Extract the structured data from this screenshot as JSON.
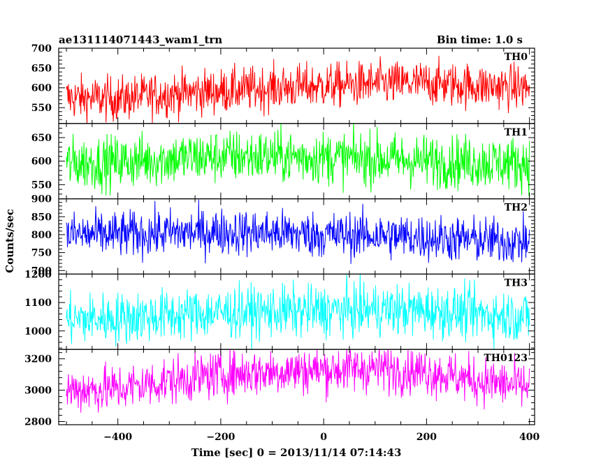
{
  "header": {
    "title": "ae131114071443_wam1_trn",
    "bin_time": "Bin time: 1.0 s"
  },
  "chart_data": [
    {
      "type": "line",
      "series_label": "TH0",
      "color": "#ff0000",
      "ylim": [
        510,
        700
      ],
      "yticks": [
        550,
        600,
        650,
        700
      ],
      "trend": [
        [
          -500,
          575
        ],
        [
          -400,
          572
        ],
        [
          -300,
          585
        ],
        [
          -200,
          592
        ],
        [
          -100,
          600
        ],
        [
          0,
          605
        ],
        [
          100,
          610
        ],
        [
          200,
          612
        ],
        [
          300,
          605
        ],
        [
          400,
          600
        ]
      ],
      "noise": 28
    },
    {
      "type": "line",
      "series_label": "TH1",
      "color": "#00ff00",
      "ylim": [
        520,
        680
      ],
      "yticks": [
        550,
        600,
        650
      ],
      "trend": [
        [
          -500,
          595
        ],
        [
          -400,
          598
        ],
        [
          -300,
          605
        ],
        [
          -200,
          610
        ],
        [
          -100,
          610
        ],
        [
          0,
          608
        ],
        [
          100,
          605
        ],
        [
          200,
          600
        ],
        [
          300,
          598
        ],
        [
          400,
          595
        ]
      ],
      "noise": 28
    },
    {
      "type": "line",
      "series_label": "TH2",
      "color": "#0000ff",
      "ylim": [
        690,
        900
      ],
      "yticks": [
        700,
        750,
        800,
        850,
        900
      ],
      "trend": [
        [
          -500,
          800
        ],
        [
          -400,
          800
        ],
        [
          -300,
          805
        ],
        [
          -200,
          808
        ],
        [
          -100,
          805
        ],
        [
          0,
          800
        ],
        [
          100,
          798
        ],
        [
          200,
          792
        ],
        [
          300,
          785
        ],
        [
          400,
          780
        ]
      ],
      "noise": 32
    },
    {
      "type": "line",
      "series_label": "TH3",
      "color": "#00ffff",
      "ylim": [
        935,
        1200
      ],
      "yticks": [
        1000,
        1100,
        1200
      ],
      "trend": [
        [
          -500,
          1040
        ],
        [
          -400,
          1045
        ],
        [
          -300,
          1055
        ],
        [
          -200,
          1065
        ],
        [
          -100,
          1068
        ],
        [
          0,
          1070
        ],
        [
          100,
          1075
        ],
        [
          200,
          1072
        ],
        [
          300,
          1060
        ],
        [
          400,
          1050
        ]
      ],
      "noise": 45
    },
    {
      "type": "line",
      "series_label": "TH0123",
      "color": "#ff00ff",
      "ylim": [
        2780,
        3260
      ],
      "yticks": [
        2800,
        3000,
        3200
      ],
      "trend": [
        [
          -500,
          3000
        ],
        [
          -400,
          3010
        ],
        [
          -300,
          3060
        ],
        [
          -200,
          3100
        ],
        [
          -100,
          3120
        ],
        [
          0,
          3130
        ],
        [
          100,
          3140
        ],
        [
          200,
          3120
        ],
        [
          300,
          3060
        ],
        [
          400,
          3020
        ]
      ],
      "noise": 75
    }
  ],
  "x_axis": {
    "xlim": [
      -515,
      410
    ],
    "ticks": [
      -400,
      -200,
      0,
      200,
      400
    ],
    "tick_labels": [
      "−400",
      "−200",
      "0",
      "200",
      "400"
    ],
    "label": "Time [sec] 0 = 2013/11/14 07:14:43",
    "minor_step": 50
  },
  "y_axis_label": "Counts/sec"
}
